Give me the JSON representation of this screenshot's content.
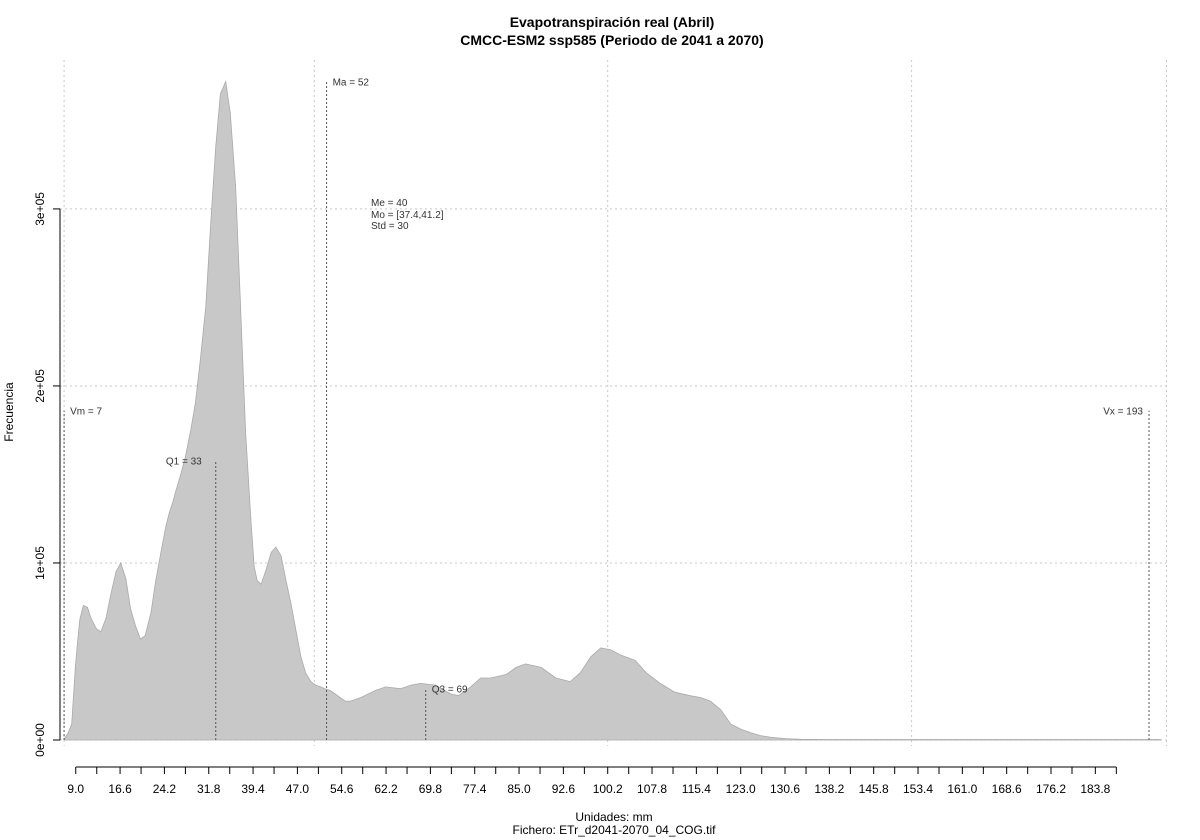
{
  "chart_data": {
    "type": "area",
    "title": "Evapotranspiración real (Abril)",
    "subtitle": "CMCC-ESM2 ssp585 (Periodo de 2041 a 2070)",
    "xlabel": "Unidades: mm",
    "caption": "Fichero: ETr_d2041-2070_04_COG.tif",
    "ylabel": "Frecuencia",
    "xlim": [
      6.3,
      196.6
    ],
    "ylim": [
      0,
      370000
    ],
    "x_ticks": [
      9.0,
      12.6,
      16.6,
      20.2,
      24.2,
      27.8,
      31.8,
      35.4,
      39.4,
      43.0,
      47.0,
      50.6,
      54.6,
      58.2,
      62.2,
      65.8,
      69.8,
      73.4,
      77.4,
      81.0,
      85.0,
      88.6,
      92.6,
      96.2,
      100.2,
      103.8,
      107.8,
      111.4,
      115.4,
      119.0,
      123.0,
      126.6,
      130.6,
      134.2,
      138.2,
      141.8,
      145.8,
      149.4,
      153.4,
      157.0,
      161.0,
      164.6,
      168.6,
      172.2,
      176.2,
      179.8,
      183.8,
      187.4
    ],
    "x_tick_labels": [
      "9.0",
      "",
      "16.6",
      "",
      "24.2",
      "",
      "31.8",
      "",
      "39.4",
      "",
      "47.0",
      "",
      "54.6",
      "",
      "62.2",
      "",
      "69.8",
      "",
      "77.4",
      "",
      "85.0",
      "",
      "92.6",
      "",
      "100.2",
      "",
      "107.8",
      "",
      "115.4",
      "",
      "123.0",
      "",
      "130.6",
      "",
      "138.2",
      "",
      "145.8",
      "",
      "153.4",
      "",
      "161.0",
      "",
      "168.6",
      "",
      "176.2",
      "",
      "183.8",
      ""
    ],
    "y_ticks": [
      0,
      100000,
      200000,
      300000
    ],
    "y_tick_labels": [
      "0e+00",
      "1e+05",
      "2e+05",
      "3e+05"
    ],
    "x_grid": [
      7,
      49.9,
      100.2,
      152.3,
      196
    ],
    "grid": true,
    "series": [
      {
        "x": [
          7.0,
          7.7,
          8.3,
          8.9,
          9.3,
          9.7,
          10.3,
          11.0,
          11.6,
          12.5,
          13.3,
          14.2,
          15.0,
          15.9,
          16.7,
          17.6,
          18.4,
          19.3,
          20.1,
          20.9,
          21.9,
          22.7,
          23.6,
          24.4,
          25.0,
          25.6,
          26.1,
          27.0,
          27.8,
          28.7,
          29.5,
          30.3,
          31.3,
          32.1,
          33.0,
          33.8,
          34.7,
          35.5,
          36.4,
          37.2,
          38.1,
          39.0,
          39.6,
          40.1,
          40.8,
          41.6,
          42.5,
          43.3,
          44.2,
          45.0,
          45.9,
          46.7,
          47.6,
          48.4,
          49.3,
          50.1,
          51.0,
          51.7,
          52.6,
          53.5,
          54.3,
          55.2,
          56.1,
          57.9,
          60.4,
          62.1,
          64.7,
          66.5,
          68.1,
          70.7,
          73.3,
          74.6,
          76.7,
          78.4,
          80.1,
          82.8,
          84.5,
          86.1,
          88.8,
          91.3,
          93.8,
          95.5,
          97.3,
          99.0,
          100.7,
          102.4,
          104.9,
          106.8,
          109.2,
          111.7,
          114.3,
          116.1,
          117.8,
          119.6,
          121.3,
          123.1,
          124.8,
          126.4,
          128.2,
          130.7,
          133.3,
          137.7,
          150.0,
          170.0,
          195.0
        ],
        "y": [
          500,
          4000,
          9000,
          40000,
          55000,
          68000,
          76000,
          75000,
          69000,
          63000,
          61000,
          69000,
          82000,
          95000,
          100000,
          91000,
          74000,
          64000,
          57000,
          59000,
          72000,
          90000,
          106000,
          120000,
          128000,
          134000,
          140000,
          150000,
          160000,
          175000,
          190000,
          213000,
          245000,
          290000,
          335000,
          365000,
          372000,
          354000,
          313000,
          250000,
          175000,
          126000,
          98000,
          90000,
          88000,
          96000,
          106000,
          109000,
          104000,
          91000,
          77000,
          63000,
          47000,
          38000,
          33000,
          31000,
          30000,
          29000,
          28000,
          26000,
          24000,
          22000,
          22000,
          24000,
          28000,
          30000,
          29000,
          31000,
          32000,
          31000,
          26000,
          25000,
          30000,
          35000,
          35000,
          37000,
          41000,
          43000,
          41000,
          35000,
          33000,
          38000,
          47000,
          52000,
          51000,
          48000,
          45000,
          38000,
          32000,
          27000,
          25000,
          24000,
          22000,
          17000,
          9000,
          6000,
          4000,
          2500,
          1500,
          800,
          400,
          300,
          300,
          300,
          300
        ]
      }
    ],
    "annotations": [
      {
        "label": "Vm = 7",
        "x": 7,
        "y_top": 186000
      },
      {
        "label": "Q1 = 33",
        "x": 33,
        "y_top": 158000
      },
      {
        "label": "Ma = 52",
        "x": 52,
        "y_top": 372000
      },
      {
        "label": "Q3 = 69",
        "x": 69,
        "y_top": 29000
      },
      {
        "label": "Vx = 193",
        "x": 193,
        "y_top": 186000
      }
    ],
    "stats_text": [
      "Me = 40",
      "Mo = [37.4,41.2]",
      "Std = 30"
    ]
  },
  "colors": {
    "fill": "#c8c8c8",
    "stroke": "#aaaaaa",
    "grid": "#c8c8c8",
    "refline": "#555555",
    "axis": "#000000"
  }
}
